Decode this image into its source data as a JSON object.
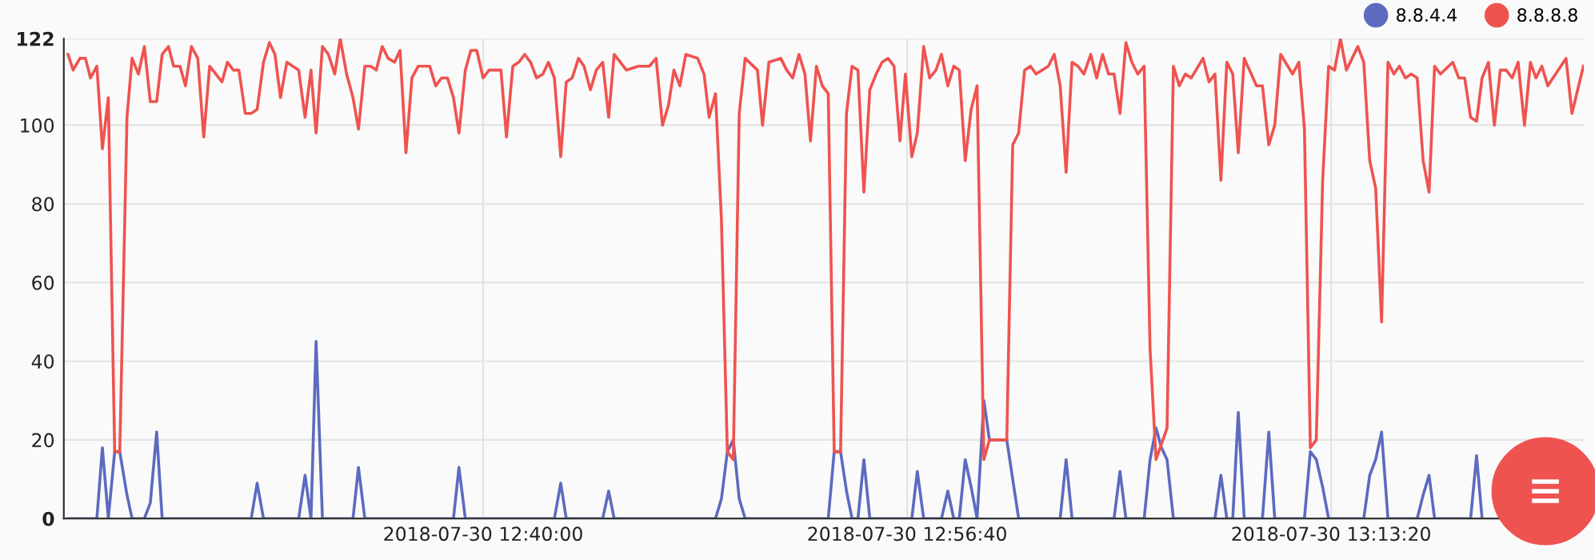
{
  "chart_data": {
    "type": "line",
    "legend": "top right",
    "grid": true,
    "xlim": [
      "2018-07-30T12:23:31",
      "2018-07-30T13:23:16"
    ],
    "xticks": [
      {
        "value": "2018-07-30T12:40:00",
        "label": "2018-07-30 12:40:00"
      },
      {
        "value": "2018-07-30T12:56:40",
        "label": "2018-07-30 12:56:40"
      },
      {
        "value": "2018-07-30T13:13:20",
        "label": "2018-07-30 13:13:20"
      }
    ],
    "ylim": [
      0,
      122
    ],
    "yticks": [
      0,
      20,
      40,
      60,
      80,
      100,
      122
    ],
    "series": [
      {
        "name": "8.8.4.4",
        "color": "#5c6bc0",
        "x": [
          "2018-07-30T12:23:41",
          "2018-07-30T12:24:49",
          "2018-07-30T12:25:02",
          "2018-07-30T12:25:16",
          "2018-07-30T12:25:31",
          "2018-07-30T12:25:43",
          "2018-07-30T12:26:00",
          "2018-07-30T12:26:12",
          "2018-07-30T12:26:41",
          "2018-07-30T12:26:55",
          "2018-07-30T12:27:10",
          "2018-07-30T12:27:23",
          "2018-07-30T12:30:53",
          "2018-07-30T12:31:07",
          "2018-07-30T12:31:22",
          "2018-07-30T12:32:45",
          "2018-07-30T12:33:00",
          "2018-07-30T12:33:14",
          "2018-07-30T12:33:26",
          "2018-07-30T12:33:41",
          "2018-07-30T12:34:53",
          "2018-07-30T12:35:06",
          "2018-07-30T12:35:21",
          "2018-07-30T12:38:50",
          "2018-07-30T12:39:03",
          "2018-07-30T12:39:18",
          "2018-07-30T12:42:48",
          "2018-07-30T12:43:03",
          "2018-07-30T12:43:16",
          "2018-07-30T12:44:42",
          "2018-07-30T12:44:56",
          "2018-07-30T12:45:09",
          "2018-07-30T12:49:08",
          "2018-07-30T12:49:22",
          "2018-07-30T12:49:36",
          "2018-07-30T12:49:50",
          "2018-07-30T12:50:04",
          "2018-07-30T12:50:18",
          "2018-07-30T12:53:34",
          "2018-07-30T12:53:48",
          "2018-07-30T12:54:03",
          "2018-07-30T12:54:17",
          "2018-07-30T12:54:30",
          "2018-07-30T12:54:44",
          "2018-07-30T12:54:58",
          "2018-07-30T12:55:12",
          "2018-07-30T12:56:51",
          "2018-07-30T12:57:04",
          "2018-07-30T12:57:19",
          "2018-07-30T12:58:01",
          "2018-07-30T12:58:16",
          "2018-07-30T12:58:30",
          "2018-07-30T12:58:43",
          "2018-07-30T12:58:57",
          "2018-07-30T12:59:11",
          "2018-07-30T12:59:25",
          "2018-07-30T12:59:41",
          "2018-07-30T12:59:54",
          "2018-07-30T13:00:35",
          "2018-07-30T13:01:03",
          "2018-07-30T13:02:41",
          "2018-07-30T13:02:55",
          "2018-07-30T13:03:09",
          "2018-07-30T13:04:48",
          "2018-07-30T13:05:02",
          "2018-07-30T13:05:16",
          "2018-07-30T13:05:59",
          "2018-07-30T13:06:13",
          "2018-07-30T13:06:27",
          "2018-07-30T13:06:40",
          "2018-07-30T13:06:53",
          "2018-07-30T13:07:08",
          "2018-07-30T13:08:46",
          "2018-07-30T13:09:00",
          "2018-07-30T13:09:14",
          "2018-07-30T13:09:28",
          "2018-07-30T13:09:41",
          "2018-07-30T13:09:55",
          "2018-07-30T13:10:38",
          "2018-07-30T13:10:53",
          "2018-07-30T13:11:07",
          "2018-07-30T13:12:17",
          "2018-07-30T13:12:31",
          "2018-07-30T13:12:45",
          "2018-07-30T13:13:00",
          "2018-07-30T13:13:14",
          "2018-07-30T13:14:37",
          "2018-07-30T13:14:51",
          "2018-07-30T13:15:05",
          "2018-07-30T13:15:19",
          "2018-07-30T13:15:34",
          "2018-07-30T13:16:43",
          "2018-07-30T13:16:57",
          "2018-07-30T13:17:11",
          "2018-07-30T13:17:24",
          "2018-07-30T13:18:49",
          "2018-07-30T13:19:03",
          "2018-07-30T13:19:16"
        ],
        "values": [
          0,
          0,
          18,
          0,
          17,
          17,
          6,
          0,
          0,
          4,
          22,
          0,
          0,
          9,
          0,
          0,
          11,
          0,
          45,
          0,
          0,
          13,
          0,
          0,
          13,
          0,
          0,
          9,
          0,
          0,
          7,
          0,
          0,
          5,
          17,
          20,
          5,
          0,
          0,
          17,
          17,
          7,
          0,
          0,
          15,
          0,
          0,
          12,
          0,
          0,
          7,
          0,
          0,
          15,
          8,
          0,
          30,
          20,
          20,
          0,
          0,
          15,
          0,
          0,
          12,
          0,
          0,
          15,
          23,
          18,
          15,
          0,
          0,
          11,
          0,
          0,
          27,
          0,
          0,
          22,
          0,
          0,
          17,
          15,
          8,
          0,
          0,
          11,
          15,
          22,
          0,
          0,
          6,
          11,
          0,
          0,
          16,
          0
        ]
      },
      {
        "name": "8.8.8.8",
        "color": "#ef5350",
        "x": [
          "2018-07-30T12:23:41",
          "2018-07-30T12:23:53",
          "2018-07-30T12:24:09",
          "2018-07-30T12:24:22",
          "2018-07-30T12:24:34",
          "2018-07-30T12:24:49",
          "2018-07-30T12:25:02",
          "2018-07-30T12:25:16",
          "2018-07-30T12:25:31",
          "2018-07-30T12:25:43",
          "2018-07-30T12:26:00",
          "2018-07-30T12:26:12",
          "2018-07-30T12:26:27",
          "2018-07-30T12:26:41",
          "2018-07-30T12:26:55",
          "2018-07-30T12:27:10",
          "2018-07-30T12:27:23",
          "2018-07-30T12:27:38",
          "2018-07-30T12:27:50",
          "2018-07-30T12:28:05",
          "2018-07-30T12:28:18",
          "2018-07-30T12:28:32",
          "2018-07-30T12:28:47",
          "2018-07-30T12:29:01",
          "2018-07-30T12:29:15",
          "2018-07-30T12:29:44",
          "2018-07-30T12:29:57",
          "2018-07-30T12:30:11",
          "2018-07-30T12:30:24",
          "2018-07-30T12:30:39",
          "2018-07-30T12:30:53",
          "2018-07-30T12:31:07",
          "2018-07-30T12:31:22",
          "2018-07-30T12:31:36",
          "2018-07-30T12:31:49",
          "2018-07-30T12:32:02",
          "2018-07-30T12:32:17",
          "2018-07-30T12:32:45",
          "2018-07-30T12:33:00",
          "2018-07-30T12:33:14",
          "2018-07-30T12:33:26",
          "2018-07-30T12:33:41",
          "2018-07-30T12:33:55",
          "2018-07-30T12:34:10",
          "2018-07-30T12:34:23",
          "2018-07-30T12:34:38",
          "2018-07-30T12:34:53",
          "2018-07-30T12:35:06",
          "2018-07-30T12:35:21",
          "2018-07-30T12:35:35",
          "2018-07-30T12:35:48",
          "2018-07-30T12:36:02",
          "2018-07-30T12:36:16",
          "2018-07-30T12:36:31",
          "2018-07-30T12:36:44",
          "2018-07-30T12:36:58",
          "2018-07-30T12:37:12",
          "2018-07-30T12:37:27",
          "2018-07-30T12:37:54",
          "2018-07-30T12:38:08",
          "2018-07-30T12:38:22",
          "2018-07-30T12:38:36",
          "2018-07-30T12:38:50",
          "2018-07-30T12:39:03",
          "2018-07-30T12:39:18",
          "2018-07-30T12:39:31",
          "2018-07-30T12:39:45",
          "2018-07-30T12:40:00",
          "2018-07-30T12:40:14",
          "2018-07-30T12:40:42",
          "2018-07-30T12:40:55",
          "2018-07-30T12:41:10",
          "2018-07-30T12:41:24",
          "2018-07-30T12:41:38",
          "2018-07-30T12:41:52",
          "2018-07-30T12:42:06",
          "2018-07-30T12:42:21",
          "2018-07-30T12:42:34",
          "2018-07-30T12:42:48",
          "2018-07-30T12:43:03",
          "2018-07-30T12:43:16",
          "2018-07-30T12:43:30",
          "2018-07-30T12:43:45",
          "2018-07-30T12:43:58",
          "2018-07-30T12:44:13",
          "2018-07-30T12:44:27",
          "2018-07-30T12:44:42",
          "2018-07-30T12:44:56",
          "2018-07-30T12:45:09",
          "2018-07-30T12:45:38",
          "2018-07-30T12:46:06",
          "2018-07-30T12:46:32",
          "2018-07-30T12:46:48",
          "2018-07-30T12:47:03",
          "2018-07-30T12:47:17",
          "2018-07-30T12:47:30",
          "2018-07-30T12:47:44",
          "2018-07-30T12:47:58",
          "2018-07-30T12:48:26",
          "2018-07-30T12:48:41",
          "2018-07-30T12:48:53",
          "2018-07-30T12:49:08",
          "2018-07-30T12:49:22",
          "2018-07-30T12:49:36",
          "2018-07-30T12:49:50",
          "2018-07-30T12:50:04",
          "2018-07-30T12:50:18",
          "2018-07-30T12:50:47",
          "2018-07-30T12:50:59",
          "2018-07-30T12:51:14",
          "2018-07-30T12:51:42",
          "2018-07-30T12:51:56",
          "2018-07-30T12:52:10",
          "2018-07-30T12:52:25",
          "2018-07-30T12:52:39",
          "2018-07-30T12:52:52",
          "2018-07-30T12:53:06",
          "2018-07-30T12:53:20",
          "2018-07-30T12:53:34",
          "2018-07-30T12:53:48",
          "2018-07-30T12:54:03",
          "2018-07-30T12:54:17",
          "2018-07-30T12:54:30",
          "2018-07-30T12:54:44",
          "2018-07-30T12:54:58",
          "2018-07-30T12:55:12",
          "2018-07-30T12:55:27",
          "2018-07-30T12:55:41",
          "2018-07-30T12:55:55",
          "2018-07-30T12:56:09",
          "2018-07-30T12:56:23",
          "2018-07-30T12:56:36",
          "2018-07-30T12:56:51",
          "2018-07-30T12:57:04",
          "2018-07-30T12:57:19",
          "2018-07-30T12:57:33",
          "2018-07-30T12:57:48",
          "2018-07-30T12:58:01",
          "2018-07-30T12:58:16",
          "2018-07-30T12:58:30",
          "2018-07-30T12:58:43",
          "2018-07-30T12:58:57",
          "2018-07-30T12:59:11",
          "2018-07-30T12:59:25",
          "2018-07-30T12:59:41",
          "2018-07-30T12:59:54",
          "2018-07-30T13:00:35",
          "2018-07-30T13:00:49",
          "2018-07-30T13:01:03",
          "2018-07-30T13:01:17",
          "2018-07-30T13:01:31",
          "2018-07-30T13:01:44",
          "2018-07-30T13:02:13",
          "2018-07-30T13:02:27",
          "2018-07-30T13:02:41",
          "2018-07-30T13:02:55",
          "2018-07-30T13:03:09",
          "2018-07-30T13:03:23",
          "2018-07-30T13:03:37",
          "2018-07-30T13:03:53",
          "2018-07-30T13:04:07",
          "2018-07-30T13:04:21",
          "2018-07-30T13:04:35",
          "2018-07-30T13:04:48",
          "2018-07-30T13:05:02",
          "2018-07-30T13:05:16",
          "2018-07-30T13:05:30",
          "2018-07-30T13:05:44",
          "2018-07-30T13:05:59",
          "2018-07-30T13:06:13",
          "2018-07-30T13:06:27",
          "2018-07-30T13:06:53",
          "2018-07-30T13:07:08",
          "2018-07-30T13:07:22",
          "2018-07-30T13:07:36",
          "2018-07-30T13:07:50",
          "2018-07-30T13:08:18",
          "2018-07-30T13:08:32",
          "2018-07-30T13:08:46",
          "2018-07-30T13:09:00",
          "2018-07-30T13:09:14",
          "2018-07-30T13:09:28",
          "2018-07-30T13:09:41",
          "2018-07-30T13:09:55",
          "2018-07-30T13:10:24",
          "2018-07-30T13:10:38",
          "2018-07-30T13:10:53",
          "2018-07-30T13:11:07",
          "2018-07-30T13:11:21",
          "2018-07-30T13:11:49",
          "2018-07-30T13:12:04",
          "2018-07-30T13:12:17",
          "2018-07-30T13:12:31",
          "2018-07-30T13:12:45",
          "2018-07-30T13:13:00",
          "2018-07-30T13:13:14",
          "2018-07-30T13:13:28",
          "2018-07-30T13:13:42",
          "2018-07-30T13:13:56",
          "2018-07-30T13:14:23",
          "2018-07-30T13:14:37",
          "2018-07-30T13:14:51",
          "2018-07-30T13:15:05",
          "2018-07-30T13:15:19",
          "2018-07-30T13:15:34",
          "2018-07-30T13:15:48",
          "2018-07-30T13:16:01",
          "2018-07-30T13:16:15",
          "2018-07-30T13:16:29",
          "2018-07-30T13:16:43",
          "2018-07-30T13:16:57",
          "2018-07-30T13:17:11",
          "2018-07-30T13:17:24",
          "2018-07-30T13:17:38",
          "2018-07-30T13:18:07",
          "2018-07-30T13:18:21",
          "2018-07-30T13:18:35",
          "2018-07-30T13:18:49",
          "2018-07-30T13:19:03",
          "2018-07-30T13:19:16",
          "2018-07-30T13:19:31",
          "2018-07-30T13:19:45",
          "2018-07-30T13:19:59",
          "2018-07-30T13:20:13",
          "2018-07-30T13:20:27",
          "2018-07-30T13:20:41",
          "2018-07-30T13:20:56",
          "2018-07-30T13:21:10",
          "2018-07-30T13:21:23",
          "2018-07-30T13:21:37",
          "2018-07-30T13:21:51",
          "2018-07-30T13:22:34",
          "2018-07-30T13:22:48",
          "2018-07-30T13:23:15"
        ],
        "values": [
          118,
          114,
          117,
          117,
          112,
          115,
          94,
          107,
          17,
          17,
          102,
          117,
          113,
          120,
          106,
          106,
          118,
          120,
          115,
          115,
          110,
          120,
          117,
          97,
          115,
          111,
          116,
          114,
          114,
          103,
          103,
          104,
          116,
          121,
          118,
          107,
          116,
          114,
          102,
          114,
          98,
          120,
          118,
          113,
          122,
          113,
          107,
          99,
          115,
          115,
          114,
          120,
          117,
          116,
          119,
          93,
          112,
          115,
          115,
          110,
          112,
          112,
          107,
          98,
          114,
          119,
          119,
          112,
          114,
          114,
          97,
          115,
          116,
          118,
          116,
          112,
          113,
          116,
          112,
          92,
          111,
          112,
          117,
          115,
          109,
          114,
          116,
          102,
          118,
          114,
          115,
          115,
          117,
          100,
          105,
          114,
          110,
          118,
          117,
          113,
          102,
          108,
          76,
          17,
          15,
          103,
          117,
          114,
          100,
          116,
          117,
          114,
          112,
          118,
          113,
          96,
          115,
          110,
          108,
          17,
          17,
          103,
          115,
          114,
          83,
          109,
          113,
          116,
          117,
          115,
          96,
          113,
          92,
          98,
          120,
          112,
          114,
          118,
          110,
          115,
          114,
          91,
          104,
          110,
          15,
          20,
          20,
          95,
          98,
          114,
          115,
          113,
          115,
          118,
          110,
          88,
          116,
          115,
          113,
          118,
          112,
          118,
          113,
          113,
          103,
          121,
          116,
          113,
          115,
          43,
          15,
          23,
          115,
          110,
          113,
          112,
          117,
          111,
          113,
          86,
          116,
          113,
          93,
          117,
          110,
          110,
          95,
          100,
          118,
          113,
          116,
          99,
          18,
          20,
          86,
          115,
          114,
          122,
          114,
          120,
          116,
          91,
          84,
          50,
          116,
          113,
          115,
          112,
          113,
          112,
          91,
          83,
          115,
          113,
          116,
          112,
          112,
          102,
          101,
          112,
          116,
          100,
          114,
          114,
          112,
          116,
          100,
          116,
          112,
          115,
          110,
          117,
          103,
          115
        ]
      }
    ]
  }
}
